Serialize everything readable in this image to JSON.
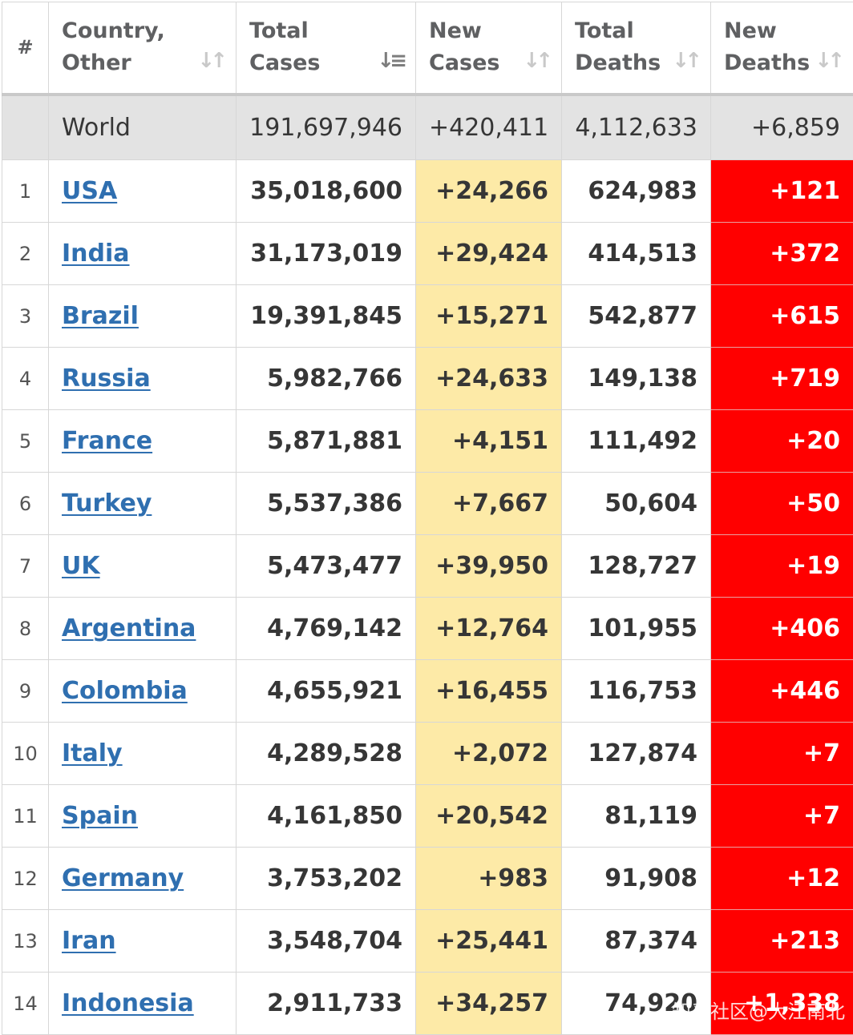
{
  "colors": {
    "header_text": "#5f6062",
    "world_row_bg": "#e3e3e3",
    "new_cases_bg": "#fdeaa7",
    "new_deaths_bg": "#ff0000",
    "link": "#2f6fb0"
  },
  "headers": {
    "rank": "#",
    "country": "Country, Other",
    "total_cases": "Total Cases",
    "new_cases": "New Cases",
    "total_deaths": "Total Deaths",
    "new_deaths": "New Deaths",
    "sort_icon": "sort-icon",
    "active_sort_icon": "sort-desc-icon"
  },
  "world": {
    "name": "World",
    "total_cases": "191,697,946",
    "new_cases": "+420,411",
    "total_deaths": "4,112,633",
    "new_deaths": "+6,859"
  },
  "rows": [
    {
      "rank": "1",
      "country": "USA",
      "total_cases": "35,018,600",
      "new_cases": "+24,266",
      "total_deaths": "624,983",
      "new_deaths": "+121"
    },
    {
      "rank": "2",
      "country": "India",
      "total_cases": "31,173,019",
      "new_cases": "+29,424",
      "total_deaths": "414,513",
      "new_deaths": "+372"
    },
    {
      "rank": "3",
      "country": "Brazil",
      "total_cases": "19,391,845",
      "new_cases": "+15,271",
      "total_deaths": "542,877",
      "new_deaths": "+615"
    },
    {
      "rank": "4",
      "country": "Russia",
      "total_cases": "5,982,766",
      "new_cases": "+24,633",
      "total_deaths": "149,138",
      "new_deaths": "+719"
    },
    {
      "rank": "5",
      "country": "France",
      "total_cases": "5,871,881",
      "new_cases": "+4,151",
      "total_deaths": "111,492",
      "new_deaths": "+20"
    },
    {
      "rank": "6",
      "country": "Turkey",
      "total_cases": "5,537,386",
      "new_cases": "+7,667",
      "total_deaths": "50,604",
      "new_deaths": "+50"
    },
    {
      "rank": "7",
      "country": "UK",
      "total_cases": "5,473,477",
      "new_cases": "+39,950",
      "total_deaths": "128,727",
      "new_deaths": "+19"
    },
    {
      "rank": "8",
      "country": "Argentina",
      "total_cases": "4,769,142",
      "new_cases": "+12,764",
      "total_deaths": "101,955",
      "new_deaths": "+406"
    },
    {
      "rank": "9",
      "country": "Colombia",
      "total_cases": "4,655,921",
      "new_cases": "+16,455",
      "total_deaths": "116,753",
      "new_deaths": "+446"
    },
    {
      "rank": "10",
      "country": "Italy",
      "total_cases": "4,289,528",
      "new_cases": "+2,072",
      "total_deaths": "127,874",
      "new_deaths": "+7"
    },
    {
      "rank": "11",
      "country": "Spain",
      "total_cases": "4,161,850",
      "new_cases": "+20,542",
      "total_deaths": "81,119",
      "new_deaths": "+7"
    },
    {
      "rank": "12",
      "country": "Germany",
      "total_cases": "3,753,202",
      "new_cases": "+983",
      "total_deaths": "91,908",
      "new_deaths": "+12"
    },
    {
      "rank": "13",
      "country": "Iran",
      "total_cases": "3,548,704",
      "new_cases": "+25,441",
      "total_deaths": "87,374",
      "new_deaths": "+213"
    },
    {
      "rank": "14",
      "country": "Indonesia",
      "total_cases": "2,911,733",
      "new_cases": "+34,257",
      "total_deaths": "74,920",
      "new_deaths": "+1,338"
    }
  ],
  "watermark": "知乎社区@大江南北"
}
